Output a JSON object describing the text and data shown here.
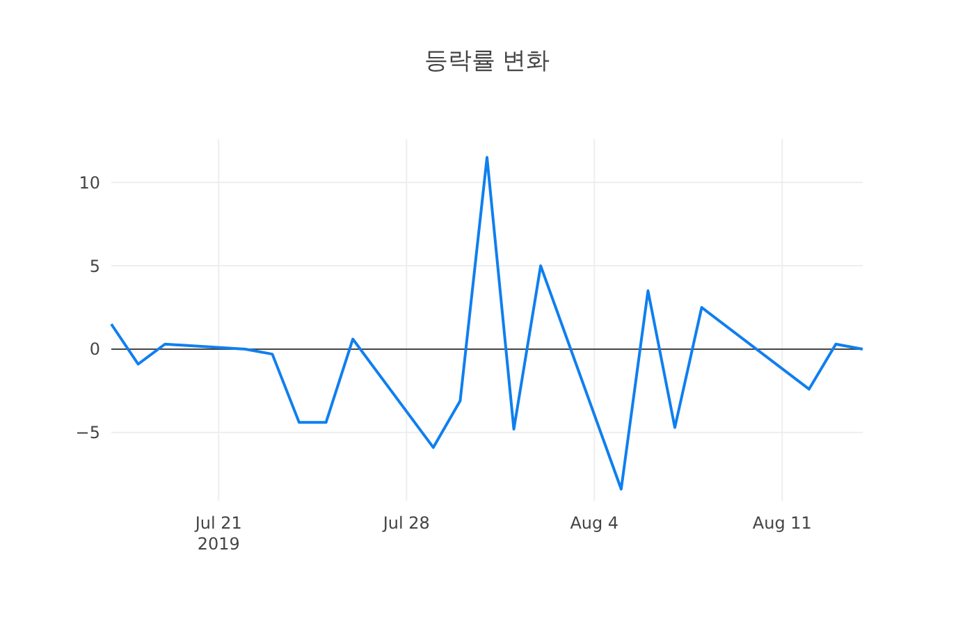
{
  "chart_data": {
    "type": "line",
    "title": "등락률 변화",
    "x": [
      "2019-07-17",
      "2019-07-18",
      "2019-07-19",
      "2019-07-22",
      "2019-07-23",
      "2019-07-24",
      "2019-07-25",
      "2019-07-26",
      "2019-07-29",
      "2019-07-30",
      "2019-07-31",
      "2019-08-01",
      "2019-08-02",
      "2019-08-05",
      "2019-08-06",
      "2019-08-07",
      "2019-08-08",
      "2019-08-12",
      "2019-08-13",
      "2019-08-14"
    ],
    "series": [
      {
        "color": "#0f7fef",
        "values": [
          1.5,
          -0.9,
          0.3,
          0.0,
          -0.3,
          -4.4,
          -4.4,
          0.6,
          -5.9,
          -3.1,
          11.5,
          -4.8,
          5.0,
          -8.4,
          3.5,
          -4.7,
          2.5,
          -2.4,
          0.3,
          0.0
        ]
      }
    ],
    "xlim": [
      "2019-07-17",
      "2019-08-14"
    ],
    "xticks": [
      {
        "value": "2019-07-21",
        "label": "Jul 21\n2019"
      },
      {
        "value": "2019-07-28",
        "label": "Jul 28"
      },
      {
        "value": "2019-08-04",
        "label": "Aug 4"
      },
      {
        "value": "2019-08-11",
        "label": "Aug 11"
      }
    ],
    "ylim": [
      -9.1,
      12.6
    ],
    "yticks": [
      {
        "value": -5,
        "label": "−5"
      },
      0,
      5,
      10
    ],
    "ref_lines": [
      {
        "axis": "y",
        "value": 0,
        "color": "#444444"
      }
    ],
    "grid": true,
    "line_style": "solid",
    "marker": "none"
  }
}
